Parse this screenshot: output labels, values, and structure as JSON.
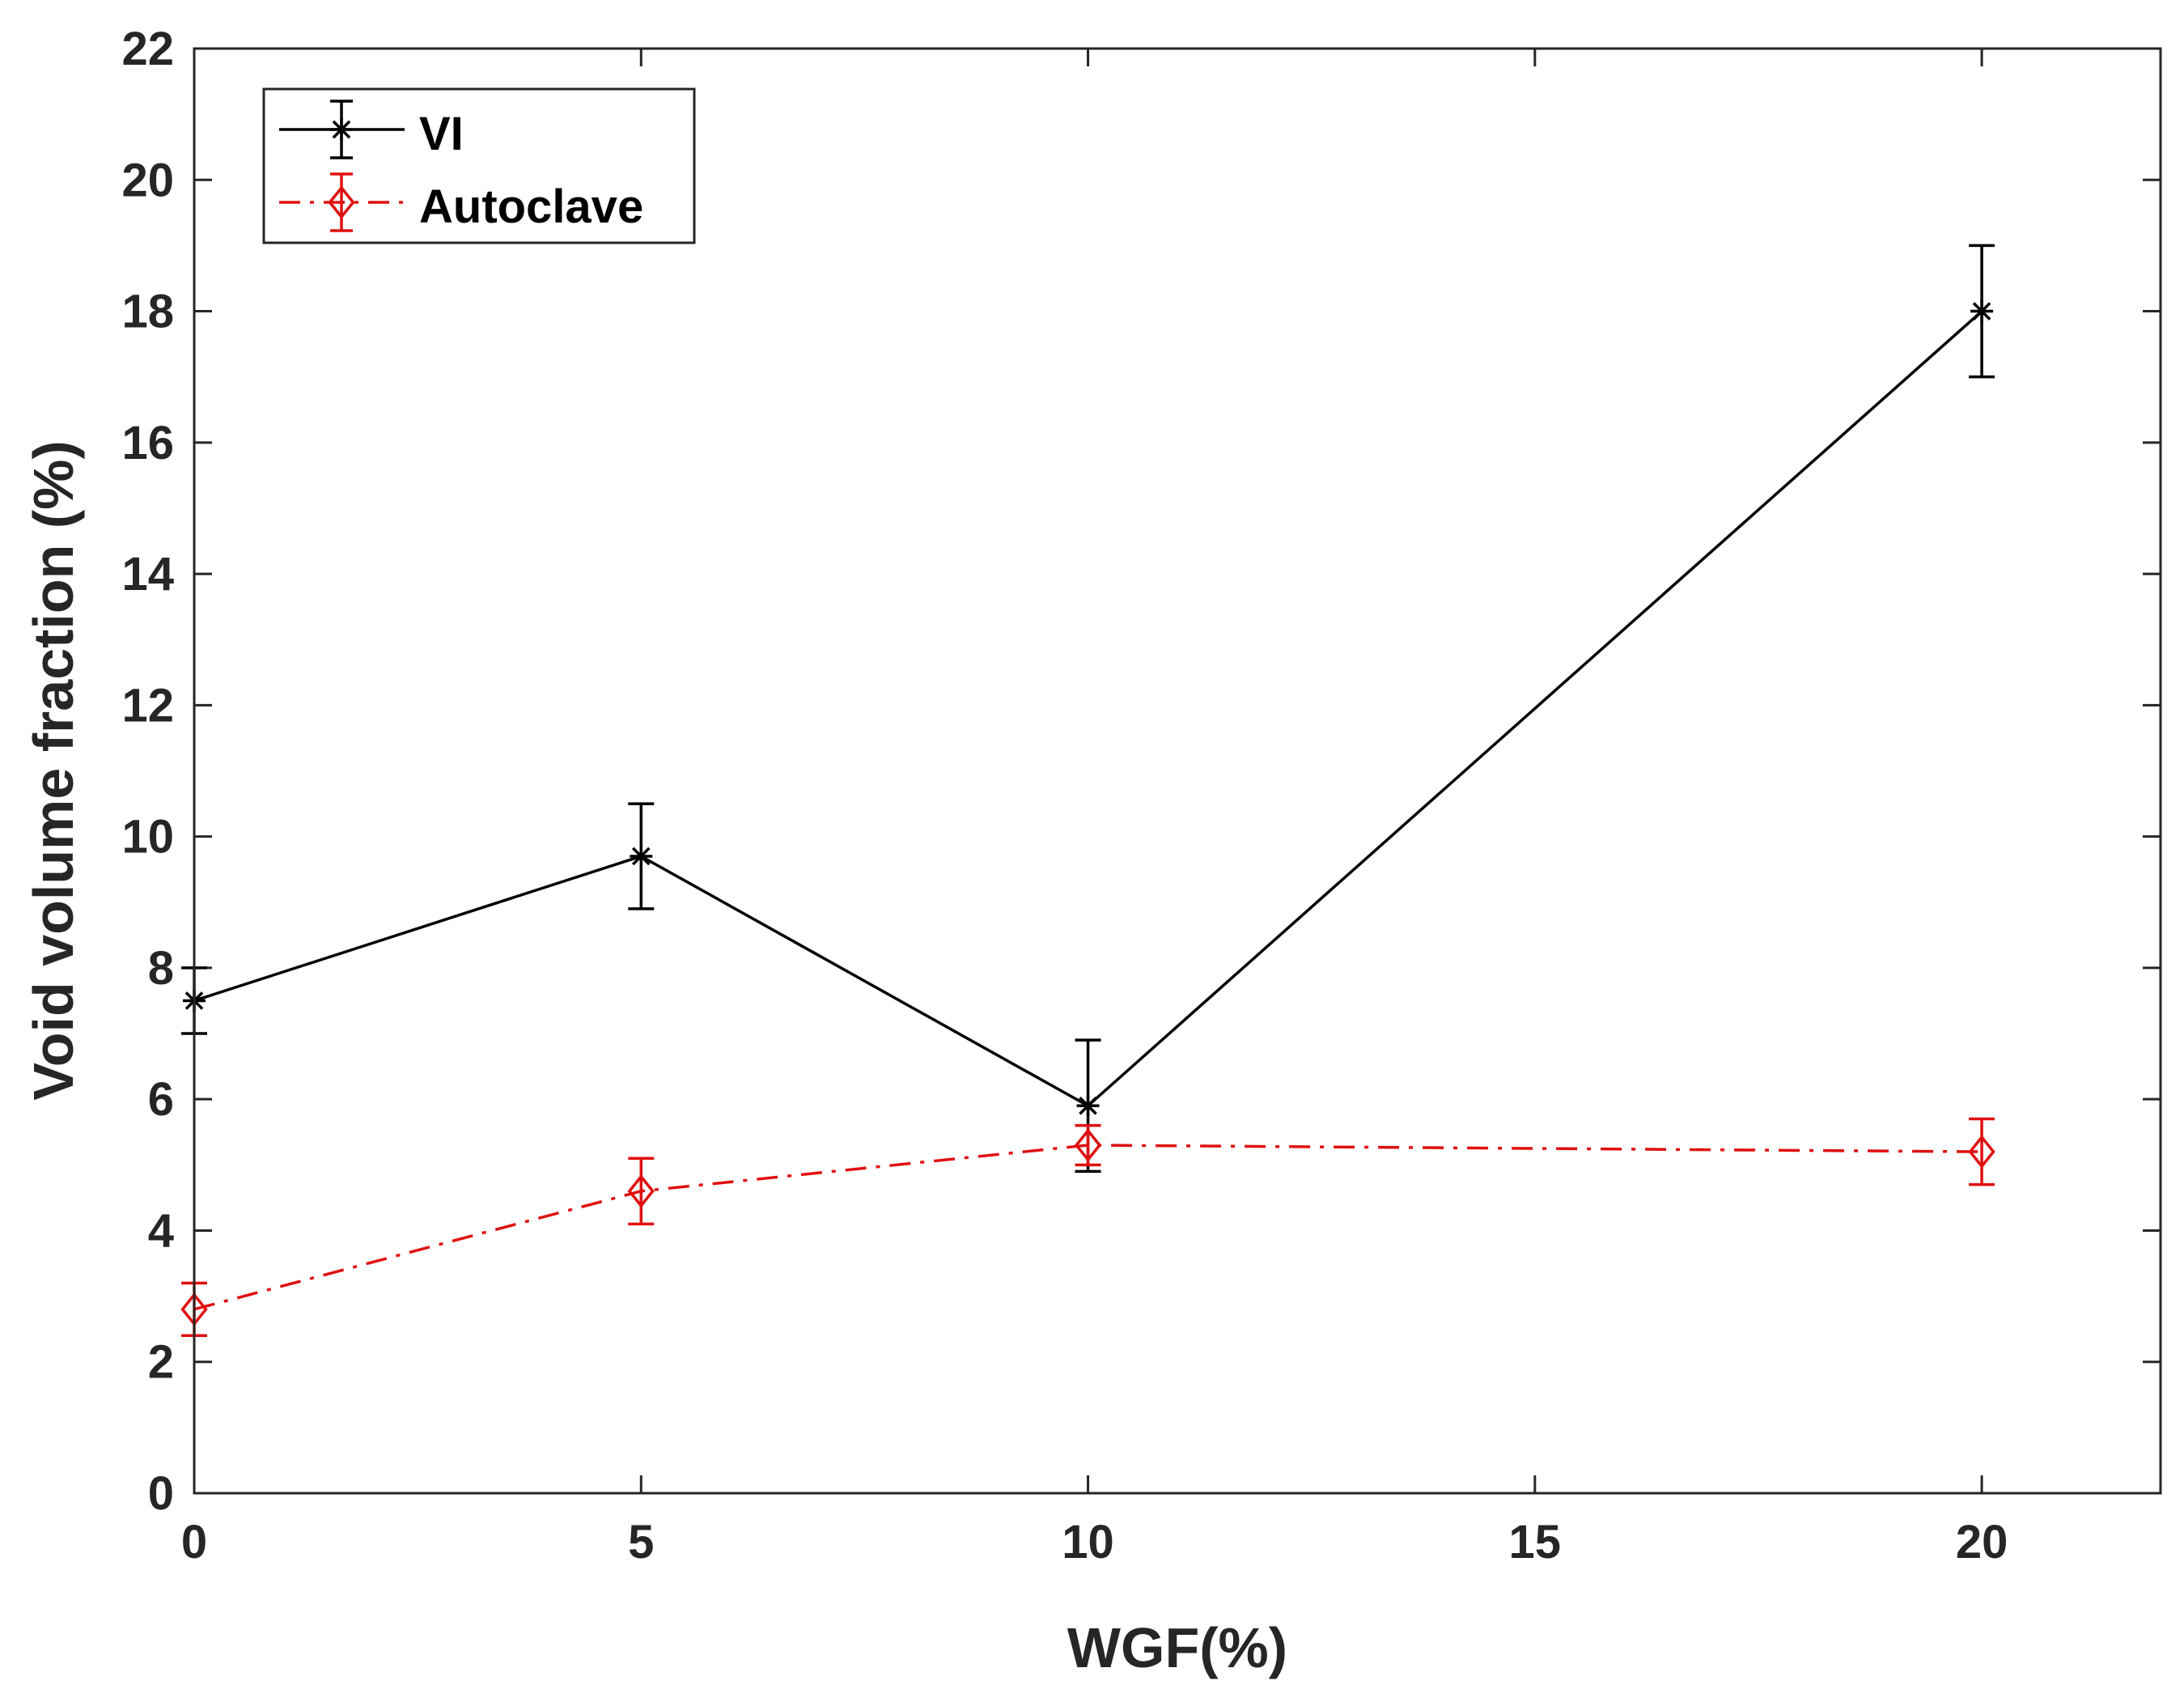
{
  "chart_data": {
    "type": "line",
    "title": "",
    "xlabel": "WGF(%)",
    "ylabel": "Void volume fraction (%)",
    "xlim": [
      0,
      22
    ],
    "ylim": [
      0,
      22
    ],
    "xticks": [
      0,
      5,
      10,
      15,
      20
    ],
    "yticks": [
      0,
      2,
      4,
      6,
      8,
      10,
      12,
      14,
      16,
      18,
      20,
      22
    ],
    "grid": false,
    "legend_position": "top-left",
    "series": [
      {
        "name": "VI",
        "color": "#000000",
        "line_style": "solid",
        "marker": "asterisk",
        "x": [
          0,
          5,
          10,
          20
        ],
        "y": [
          7.5,
          9.7,
          5.9,
          18.0
        ],
        "error": [
          0.5,
          0.8,
          1.0,
          1.0
        ]
      },
      {
        "name": "Autoclave",
        "color": "#e01010",
        "line_style": "dash-dot",
        "marker": "diamond",
        "x": [
          0,
          5,
          10,
          20
        ],
        "y": [
          2.8,
          4.6,
          5.3,
          5.2
        ],
        "error": [
          0.4,
          0.5,
          0.3,
          0.5
        ]
      }
    ]
  }
}
